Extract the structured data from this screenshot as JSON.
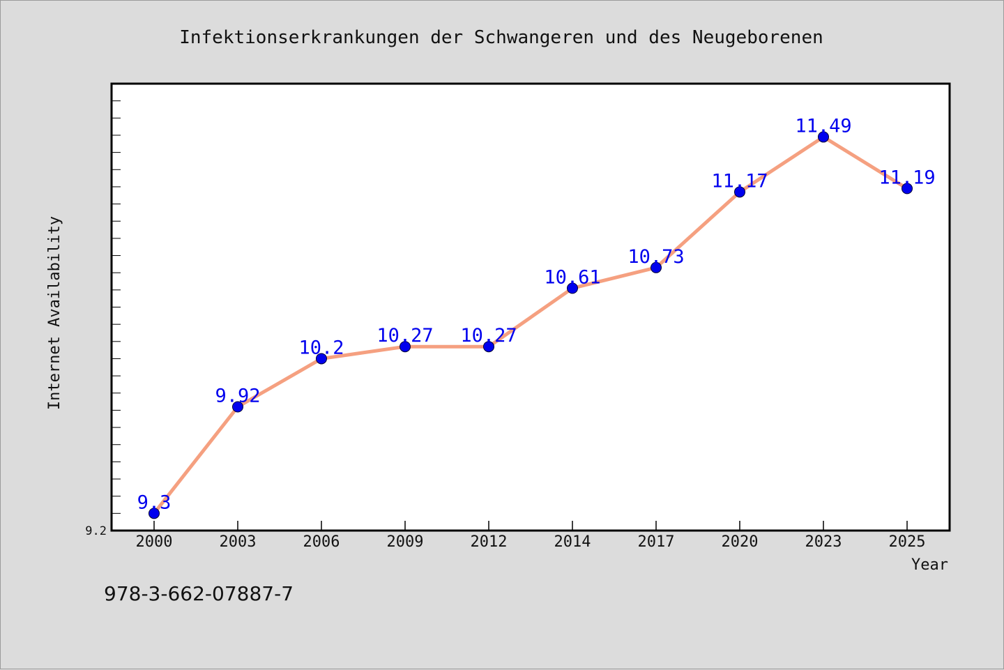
{
  "chart_data": {
    "type": "line",
    "title": "Infektionserkrankungen der Schwangeren und des Neugeborenen",
    "xlabel": "Year",
    "ylabel": "Internet Availability",
    "categories": [
      "2000",
      "2003",
      "2006",
      "2009",
      "2012",
      "2014",
      "2017",
      "2020",
      "2023",
      "2025"
    ],
    "values": [
      9.3,
      9.92,
      10.2,
      10.27,
      10.27,
      10.61,
      10.73,
      11.17,
      11.49,
      11.19
    ],
    "value_labels": [
      "9.3",
      "9.92",
      "10.2",
      "10.27",
      "10.27",
      "10.61",
      "10.73",
      "11.17",
      "11.49",
      "11.19"
    ],
    "y_tick_label": "9.2",
    "ylim": [
      9.2,
      11.8
    ],
    "y_minor_tick_step": 0.1,
    "grid": false,
    "line_color": "#f5a080",
    "marker_color": "#0000ee",
    "label_color": "#0000ee"
  },
  "footer": {
    "isbn": "978-3-662-07887-7"
  }
}
